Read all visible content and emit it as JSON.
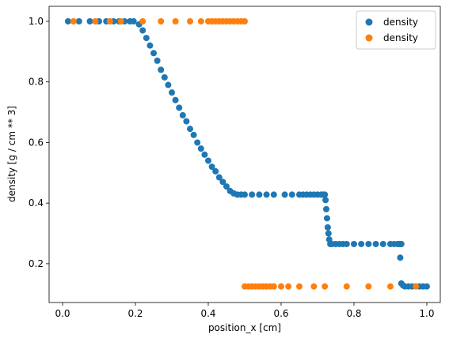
{
  "chart_data": {
    "type": "scatter",
    "xlabel": "position_x [cm]",
    "ylabel": "density [g / cm ** 3]",
    "xlim": [
      -0.037,
      1.037
    ],
    "ylim": [
      0.072,
      1.0495
    ],
    "xticks": [
      {
        "value": 0,
        "label": "0.0"
      },
      0.2,
      0.4,
      0.6,
      0.8,
      {
        "value": 1,
        "label": "1.0"
      }
    ],
    "yticks": [
      0.2,
      0.4,
      0.6,
      0.8,
      {
        "value": 1,
        "label": "1.0"
      }
    ],
    "legend": "upper right",
    "series": [
      {
        "name": "density",
        "color": "#1f77b4",
        "x": [
          0.015,
          0.045,
          0.075,
          0.1,
          0.12,
          0.14,
          0.155,
          0.17,
          0.185,
          0.195,
          0.21,
          0.22,
          0.23,
          0.24,
          0.25,
          0.26,
          0.27,
          0.28,
          0.29,
          0.3,
          0.31,
          0.32,
          0.33,
          0.34,
          0.35,
          0.36,
          0.37,
          0.38,
          0.39,
          0.4,
          0.41,
          0.42,
          0.43,
          0.44,
          0.45,
          0.46,
          0.47,
          0.48,
          0.49,
          0.5,
          0.52,
          0.54,
          0.56,
          0.58,
          0.61,
          0.63,
          0.65,
          0.66,
          0.67,
          0.68,
          0.69,
          0.7,
          0.71,
          0.715,
          0.72,
          0.722,
          0.724,
          0.726,
          0.728,
          0.73,
          0.732,
          0.735,
          0.74,
          0.75,
          0.76,
          0.77,
          0.78,
          0.8,
          0.82,
          0.84,
          0.86,
          0.88,
          0.9,
          0.91,
          0.92,
          0.925,
          0.928,
          0.93,
          0.927,
          0.93,
          0.935,
          0.94,
          0.95,
          0.96,
          0.97,
          0.98,
          0.99,
          1.0
        ],
        "values": [
          1,
          1,
          1,
          1,
          1,
          1,
          1,
          1,
          1,
          1,
          0.99,
          0.97,
          0.945,
          0.92,
          0.895,
          0.87,
          0.84,
          0.815,
          0.79,
          0.765,
          0.74,
          0.715,
          0.69,
          0.67,
          0.645,
          0.625,
          0.6,
          0.58,
          0.56,
          0.54,
          0.52,
          0.505,
          0.485,
          0.47,
          0.455,
          0.44,
          0.432,
          0.428,
          0.428,
          0.428,
          0.428,
          0.428,
          0.428,
          0.428,
          0.428,
          0.428,
          0.428,
          0.428,
          0.428,
          0.428,
          0.428,
          0.428,
          0.428,
          0.428,
          0.428,
          0.41,
          0.38,
          0.35,
          0.32,
          0.3,
          0.28,
          0.265,
          0.265,
          0.265,
          0.265,
          0.265,
          0.265,
          0.265,
          0.265,
          0.265,
          0.265,
          0.265,
          0.265,
          0.265,
          0.265,
          0.265,
          0.265,
          0.265,
          0.22,
          0.135,
          0.128,
          0.125,
          0.125,
          0.125,
          0.125,
          0.125,
          0.125,
          0.125
        ]
      },
      {
        "name": "density",
        "color": "#ff7f0e",
        "x": [
          0.03,
          0.09,
          0.13,
          0.16,
          0.22,
          0.27,
          0.31,
          0.35,
          0.38,
          0.4,
          0.41,
          0.42,
          0.43,
          0.44,
          0.45,
          0.46,
          0.47,
          0.48,
          0.49,
          0.5,
          0.5,
          0.51,
          0.52,
          0.53,
          0.54,
          0.55,
          0.56,
          0.57,
          0.58,
          0.6,
          0.62,
          0.65,
          0.69,
          0.72,
          0.78,
          0.84,
          0.9,
          0.97
        ],
        "values": [
          1,
          1,
          1,
          1,
          1,
          1,
          1,
          1,
          1,
          1,
          1,
          1,
          1,
          1,
          1,
          1,
          1,
          1,
          1,
          1,
          0.125,
          0.125,
          0.125,
          0.125,
          0.125,
          0.125,
          0.125,
          0.125,
          0.125,
          0.125,
          0.125,
          0.125,
          0.125,
          0.125,
          0.125,
          0.125,
          0.125,
          0.125
        ]
      }
    ]
  }
}
